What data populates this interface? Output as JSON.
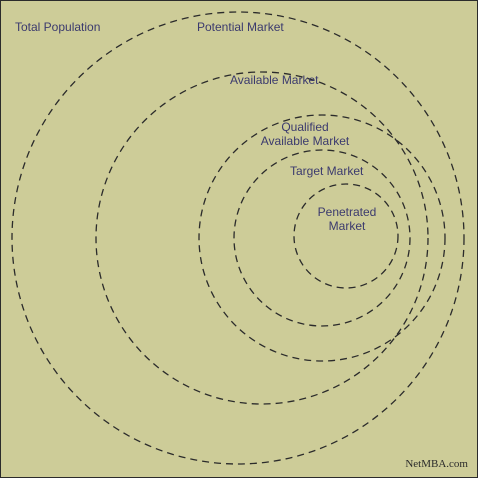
{
  "colors": {
    "background": "#cdcc98",
    "border": "#2b2b2b",
    "ring_stroke": "#2b2b2b",
    "text": "#3b3a6e",
    "credit_text": "#2b2b2b"
  },
  "labels": {
    "total_population": "Total Population",
    "potential_market": "Potential Market",
    "available_market": "Available Market",
    "qualified_line1": "Qualified",
    "qualified_line2": "Available Market",
    "target_market": "Target Market",
    "penetrated_line1": "Penetrated",
    "penetrated_line2": "Market"
  },
  "credit": "NetMBA.com"
}
